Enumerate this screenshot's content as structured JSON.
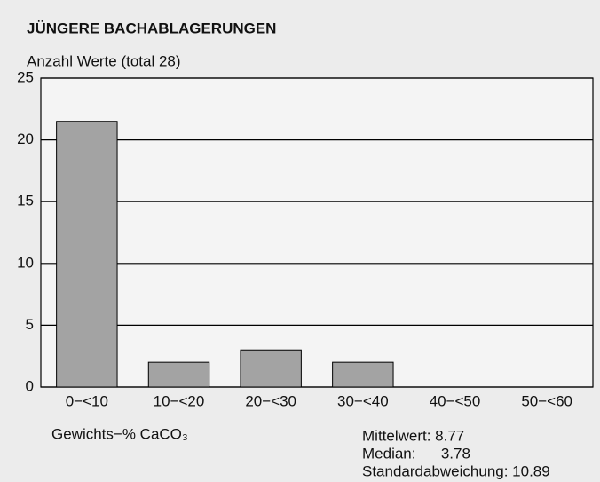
{
  "chart_data": {
    "type": "bar",
    "title": "JÜNGERE BACHABLAGERUNGEN",
    "y_label": "Anzahl Werte (total 28)",
    "x_label": "Gewichts−% CaCO₃",
    "categories": [
      "0−<10",
      "10−<20",
      "20−<30",
      "30−<40",
      "40−<50",
      "50−<60"
    ],
    "values": [
      21.5,
      2,
      3,
      2,
      0,
      0
    ],
    "color": "#a3a3a3",
    "ylim": [
      0,
      25
    ],
    "yticks": [
      0,
      5,
      10,
      15,
      20,
      25
    ],
    "grid": true,
    "annotations": [
      "Mittelwert: 8.77",
      "Median:      3.78",
      "Standardabweichung: 10.89"
    ]
  }
}
